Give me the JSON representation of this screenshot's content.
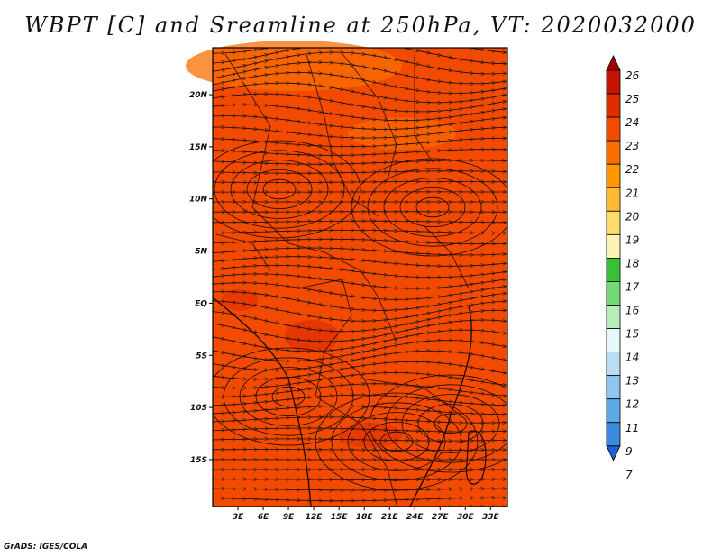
{
  "title": "WBPT [C] and Sreamline at 250hPa, VT: 2020032000",
  "credit": "GrADS: IGES/COLA",
  "chart_data": {
    "type": "heatmap",
    "title": "WBPT [C] and Sreamline at 250hPa, VT: 2020032000",
    "variable": "Wet-bulb potential temperature [C] with streamlines",
    "level": "250hPa",
    "valid_time": "2020032000",
    "x_ticks": [
      "3E",
      "6E",
      "9E",
      "12E",
      "15E",
      "18E",
      "21E",
      "24E",
      "27E",
      "30E",
      "33E"
    ],
    "x_tick_values": [
      3,
      6,
      9,
      12,
      15,
      18,
      21,
      24,
      27,
      30,
      33
    ],
    "y_ticks": [
      "20N",
      "15N",
      "10N",
      "5N",
      "EQ",
      "5S",
      "10S",
      "15S"
    ],
    "y_tick_values": [
      20,
      15,
      10,
      5,
      0,
      -5,
      -10,
      -15
    ],
    "xlim": [
      0,
      35
    ],
    "ylim": [
      -19.5,
      24.5
    ],
    "dominant_value_range": [
      22,
      24
    ],
    "colorbar": {
      "labels": [
        "26",
        "25",
        "24",
        "23",
        "22",
        "21",
        "20",
        "19",
        "18",
        "17",
        "16",
        "15",
        "14",
        "13",
        "12",
        "11",
        "9",
        "7"
      ],
      "colors": [
        "#a40000",
        "#c41400",
        "#e02d00",
        "#f24a00",
        "#fa6e00",
        "#ff9800",
        "#ffb933",
        "#ffdc6e",
        "#fff3b4",
        "#38c138",
        "#76d976",
        "#b7eeb7",
        "#e6f8fa",
        "#b8ddf5",
        "#8fc6ef",
        "#5ea8e6",
        "#3a8ade",
        "#1f5fd8"
      ]
    }
  }
}
